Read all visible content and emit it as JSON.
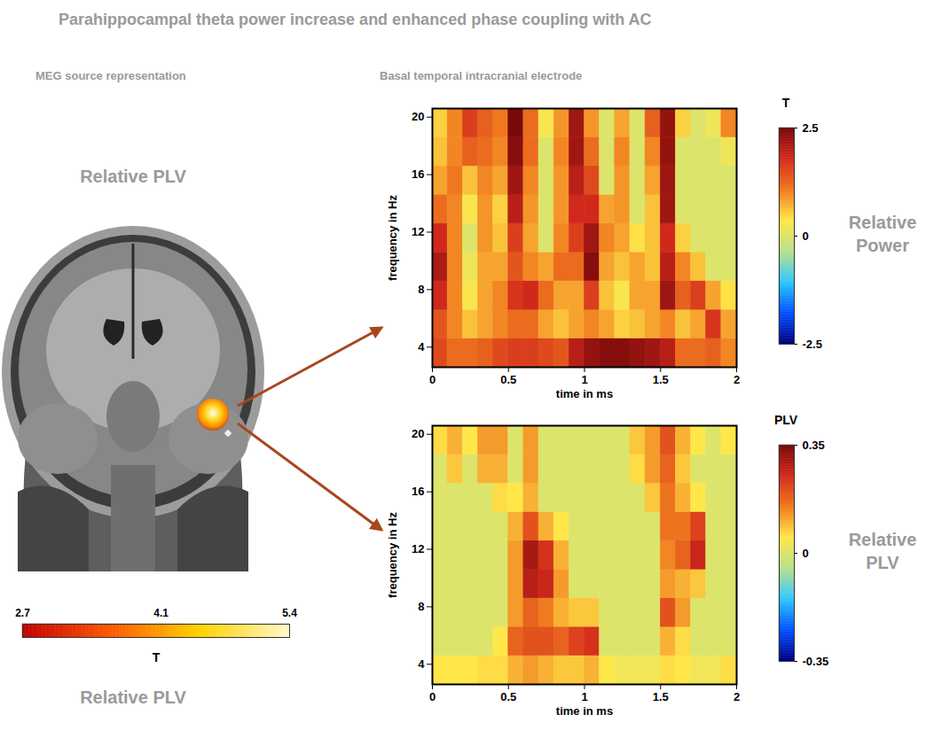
{
  "title": "Parahippocampal theta power increase and enhanced phase coupling with AC",
  "left_panel": {
    "heading": "MEG source representation",
    "label_top": "Relative PLV",
    "label_bottom": "Relative PLV",
    "colorbar": {
      "label": "T",
      "range": [
        2.7,
        5.4
      ],
      "ticks": [
        2.7,
        4.1,
        5.4
      ]
    }
  },
  "right_heading": "Basal temporal intracranial electrode",
  "chart_data": [
    {
      "type": "heatmap",
      "side_label": "Relative Power",
      "xlabel": "time in ms",
      "ylabel": "frequency in Hz",
      "xlim": [
        0,
        2
      ],
      "ylim": [
        2.6,
        20.6
      ],
      "xticks": [
        0,
        0.5,
        1,
        1.5,
        2
      ],
      "yticks": [
        4,
        8,
        12,
        16,
        20
      ],
      "x_bins": [
        0,
        0.1,
        0.2,
        0.3,
        0.4,
        0.5,
        0.6,
        0.7,
        0.8,
        0.9,
        1.0,
        1.1,
        1.2,
        1.3,
        1.4,
        1.5,
        1.6,
        1.7,
        1.8,
        1.9,
        2.0
      ],
      "y_bins": [
        2.6,
        4.6,
        6.6,
        8.6,
        10.6,
        12.6,
        14.6,
        16.6,
        18.6,
        20.6
      ],
      "values": [
        [
          1.5,
          1.2,
          1.2,
          1.3,
          1.5,
          1.6,
          1.6,
          1.5,
          1.4,
          2.0,
          2.3,
          2.4,
          2.4,
          2.3,
          2.2,
          2.0,
          1.2,
          1.2,
          1.3,
          1.0
        ],
        [
          1.4,
          1.0,
          0.6,
          0.8,
          1.0,
          1.2,
          1.2,
          0.8,
          0.6,
          0.8,
          1.0,
          0.8,
          0.5,
          0.6,
          0.8,
          1.0,
          0.6,
          0.8,
          1.7,
          0.8
        ],
        [
          1.8,
          1.0,
          0.3,
          0.8,
          1.0,
          1.7,
          1.8,
          1.2,
          0.8,
          0.8,
          1.6,
          0.6,
          0.3,
          0.8,
          0.8,
          2.2,
          1.3,
          1.6,
          0.8,
          0.4
        ],
        [
          2.1,
          1.0,
          0.2,
          0.8,
          0.8,
          1.4,
          1.0,
          0.8,
          1.2,
          1.2,
          2.4,
          0.8,
          0.6,
          0.8,
          0.6,
          2.0,
          1.0,
          0.6,
          0.0,
          0.0
        ],
        [
          1.8,
          1.0,
          0.0,
          0.9,
          0.6,
          1.6,
          0.8,
          0.0,
          1.0,
          1.6,
          2.2,
          1.0,
          0.8,
          0.4,
          0.6,
          1.8,
          0.5,
          0.0,
          0.0,
          0.0
        ],
        [
          1.2,
          1.0,
          0.3,
          0.9,
          0.5,
          2.0,
          0.9,
          0.0,
          0.9,
          1.8,
          1.8,
          0.8,
          0.9,
          0.0,
          0.6,
          2.2,
          0.0,
          0.0,
          0.0,
          0.0
        ],
        [
          0.8,
          1.1,
          0.6,
          1.0,
          0.8,
          2.2,
          1.0,
          0.0,
          0.9,
          2.0,
          1.5,
          0.0,
          0.9,
          0.0,
          0.8,
          2.2,
          0.0,
          0.0,
          0.0,
          0.0
        ],
        [
          0.6,
          1.0,
          1.3,
          1.2,
          1.0,
          2.4,
          1.2,
          0.0,
          1.0,
          2.2,
          1.2,
          0.0,
          1.0,
          0.0,
          1.0,
          2.3,
          0.0,
          0.0,
          0.0,
          0.2
        ],
        [
          0.5,
          1.0,
          1.6,
          1.3,
          1.1,
          2.5,
          1.2,
          0.3,
          0.9,
          2.2,
          0.9,
          0.0,
          0.8,
          0.0,
          1.3,
          2.3,
          0.5,
          0.0,
          0.2,
          1.0
        ]
      ],
      "colorbar": {
        "label": "T",
        "range": [
          -2.5,
          2.5
        ],
        "ticks": [
          -2.5,
          0,
          2.5
        ]
      }
    },
    {
      "type": "heatmap",
      "side_label": "Relative PLV",
      "xlabel": "time in ms",
      "ylabel": "frequency in Hz",
      "xlim": [
        0,
        2
      ],
      "ylim": [
        2.6,
        20.6
      ],
      "xticks": [
        0,
        0.5,
        1,
        1.5,
        2
      ],
      "yticks": [
        4,
        8,
        12,
        16,
        20
      ],
      "x_bins": [
        0,
        0.1,
        0.2,
        0.3,
        0.4,
        0.5,
        0.6,
        0.7,
        0.8,
        0.9,
        1.0,
        1.1,
        1.2,
        1.3,
        1.4,
        1.5,
        1.6,
        1.7,
        1.8,
        1.9,
        2.0
      ],
      "y_bins": [
        2.6,
        4.6,
        6.6,
        8.6,
        10.6,
        12.6,
        14.6,
        16.6,
        18.6,
        20.6
      ],
      "values": [
        [
          0.05,
          0.05,
          0.05,
          0.06,
          0.06,
          0.1,
          0.12,
          0.1,
          0.08,
          0.08,
          0.1,
          0.05,
          0.03,
          0.03,
          0.03,
          0.06,
          0.05,
          0.03,
          0.03,
          0.06
        ],
        [
          0,
          0,
          0,
          0,
          0.05,
          0.18,
          0.2,
          0.2,
          0.18,
          0.22,
          0.24,
          0,
          0,
          0,
          0,
          0.1,
          0.06,
          0,
          0,
          0
        ],
        [
          0,
          0,
          0,
          0,
          0,
          0.12,
          0.18,
          0.15,
          0.1,
          0.08,
          0.08,
          0,
          0,
          0,
          0,
          0.2,
          0.12,
          0,
          0,
          0
        ],
        [
          0,
          0,
          0,
          0,
          0,
          0.12,
          0.28,
          0.26,
          0.12,
          0,
          0,
          0,
          0,
          0,
          0,
          0.12,
          0.1,
          0.08,
          0,
          0
        ],
        [
          0,
          0,
          0,
          0,
          0,
          0.12,
          0.3,
          0.24,
          0.1,
          0,
          0,
          0,
          0,
          0,
          0,
          0.14,
          0.18,
          0.26,
          0,
          0
        ],
        [
          0,
          0,
          0,
          0,
          0,
          0.1,
          0.2,
          0.1,
          0.05,
          0,
          0,
          0,
          0,
          0,
          0,
          0.16,
          0.16,
          0.22,
          0,
          0
        ],
        [
          0,
          0,
          0,
          0,
          0.06,
          0.05,
          0.1,
          0,
          0,
          0,
          0,
          0,
          0,
          0,
          0.08,
          0.16,
          0.1,
          0.05,
          0,
          0
        ],
        [
          0,
          0.08,
          0,
          0.1,
          0.1,
          0,
          0.12,
          0,
          0,
          0,
          0,
          0,
          0,
          0.06,
          0.12,
          0.18,
          0.08,
          0,
          0,
          0
        ],
        [
          0.06,
          0.1,
          0.05,
          0.12,
          0.12,
          0,
          0.12,
          0,
          0,
          0,
          0,
          0,
          0,
          0.08,
          0.12,
          0.2,
          0.1,
          0.05,
          0,
          0.05
        ]
      ],
      "colorbar": {
        "label": "PLV",
        "range": [
          -0.35,
          0.35
        ],
        "ticks": [
          -0.35,
          0,
          0.35
        ]
      }
    }
  ]
}
